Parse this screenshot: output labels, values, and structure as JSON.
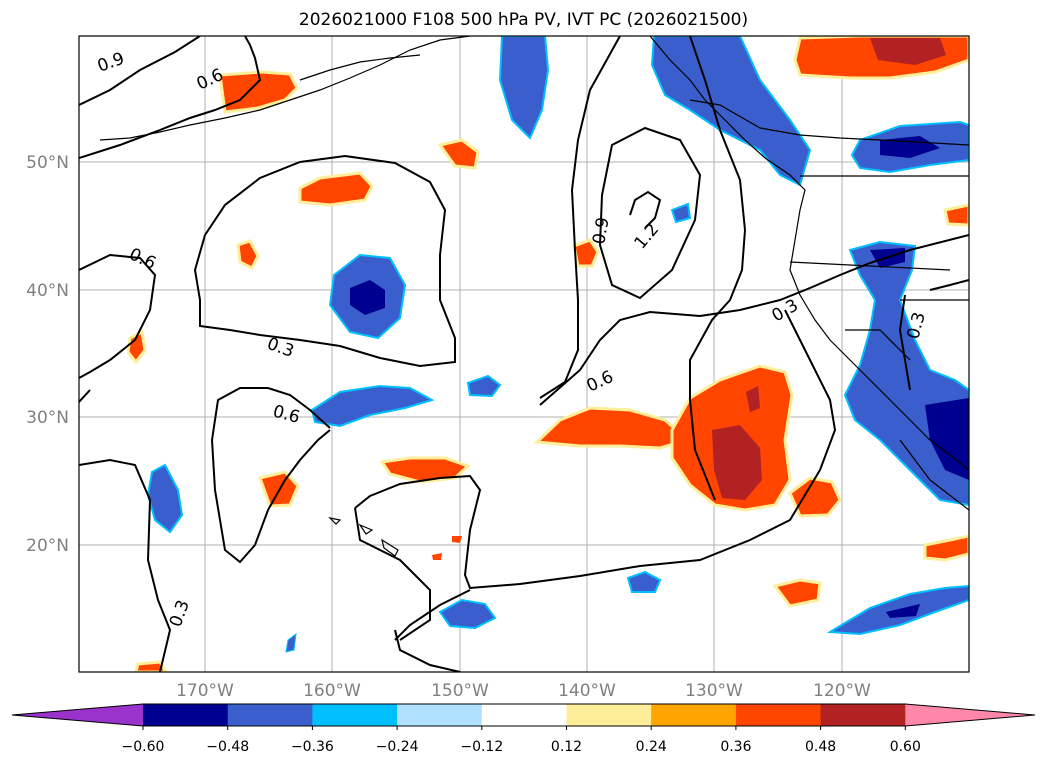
{
  "title": "2026021000 F108 500 hPa PV, IVT PC (2026021500)",
  "longitude_labels": [
    "170°W",
    "160°W",
    "150°W",
    "140°W",
    "130°W",
    "120°W"
  ],
  "latitude_labels": [
    "50°N",
    "40°N",
    "30°N",
    "20°N"
  ],
  "contour_labels": [
    "0.9",
    "0.6",
    "0.6",
    "0.3",
    "0.6",
    "0.9",
    "1.2",
    "0.6",
    "0.3",
    "0.3",
    "0.3"
  ],
  "colorbar": {
    "tick_labels": [
      "−0.60",
      "−0.48",
      "−0.36",
      "−0.24",
      "−0.12",
      "0.12",
      "0.24",
      "0.36",
      "0.48",
      "0.60"
    ],
    "colors": [
      "#9933cc",
      "#000090",
      "#3a5fcd",
      "#00bfff",
      "#b0e2ff",
      "#ffffff",
      "#ffee99",
      "#ffa500",
      "#ff4500",
      "#b22222",
      "#ff88aa"
    ]
  },
  "colors": {
    "deep_blue": "#000090",
    "blue": "#3a5fcd",
    "cyan": "#00bfff",
    "orange_red": "#ff4500",
    "dark_red": "#b22222",
    "yellow": "#ffee99"
  }
}
